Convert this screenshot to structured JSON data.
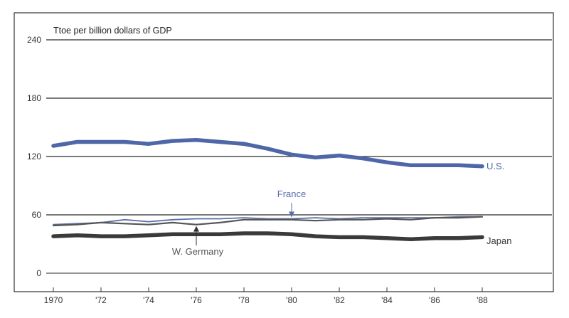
{
  "chart_data": {
    "type": "line",
    "title": "",
    "ylabel": "Ttoe per billion dollars of GDP",
    "xlabel": "",
    "x": [
      1970,
      1971,
      1972,
      1973,
      1974,
      1975,
      1976,
      1977,
      1978,
      1979,
      1980,
      1981,
      1982,
      1983,
      1984,
      1985,
      1986,
      1987,
      1988
    ],
    "xlim": [
      1970,
      1988
    ],
    "ylim": [
      0,
      240
    ],
    "yticks": [
      0,
      60,
      120,
      180,
      240
    ],
    "ytick_labels": [
      "0",
      "60",
      "120",
      "180",
      "240"
    ],
    "xticks": [
      1970,
      1972,
      1974,
      1976,
      1978,
      1980,
      1982,
      1984,
      1986,
      1988
    ],
    "xtick_labels": [
      "1970",
      "'72",
      "'74",
      "'76",
      "'78",
      "'80",
      "'82",
      "'84",
      "'86",
      "'88"
    ],
    "grid": true,
    "series": [
      {
        "name": "U.S.",
        "color": "#4f66a8",
        "values": [
          131,
          135,
          135,
          135,
          133,
          136,
          137,
          135,
          133,
          128,
          122,
          119,
          121,
          118,
          114,
          111,
          111,
          111,
          110
        ]
      },
      {
        "name": "France",
        "color": "#5a6ea8",
        "values": [
          50,
          51,
          52,
          55,
          53,
          55,
          56,
          56,
          57,
          56,
          56,
          57,
          56,
          57,
          57,
          57,
          57,
          58,
          58
        ]
      },
      {
        "name": "W. Germany",
        "color": "#555555",
        "values": [
          49,
          50,
          52,
          51,
          50,
          52,
          50,
          52,
          55,
          55,
          55,
          54,
          55,
          55,
          56,
          55,
          57,
          57,
          58
        ]
      },
      {
        "name": "Japan",
        "color": "#3a3a3a",
        "values": [
          38,
          39,
          38,
          38,
          39,
          40,
          40,
          40,
          41,
          41,
          40,
          38,
          37,
          37,
          36,
          35,
          36,
          36,
          37
        ]
      }
    ]
  }
}
